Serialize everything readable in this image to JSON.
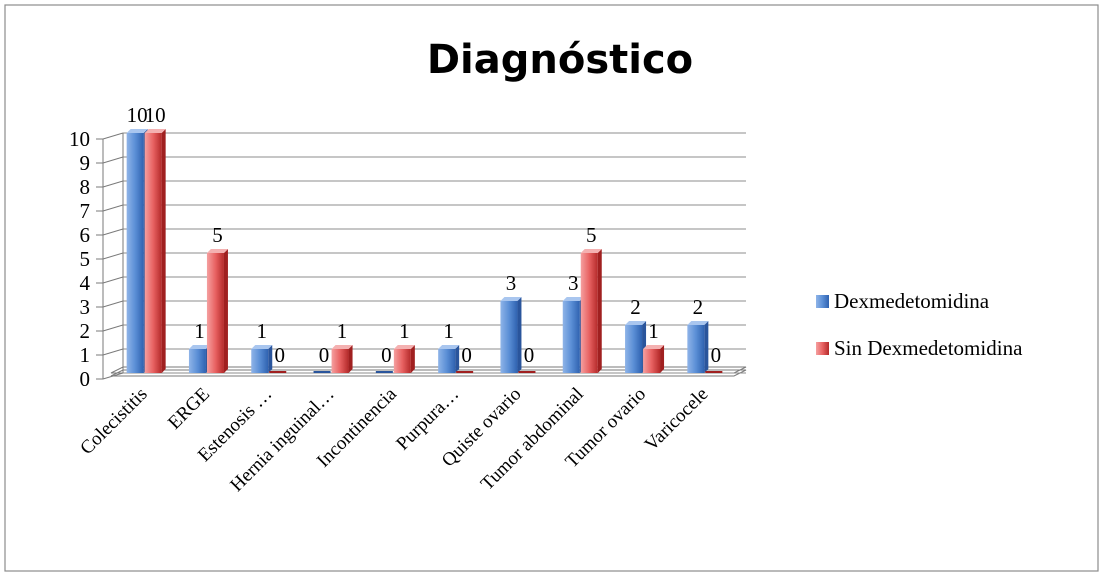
{
  "chart_data": {
    "type": "bar",
    "title": "Diagnóstico",
    "categories": [
      "Colecistitis",
      "ERGE",
      "Estenosis …",
      "Hernia inguinal…",
      "Incontinencia",
      "Purpura…",
      "Quiste ovario",
      "Tumor abdominal",
      "Tumor ovario",
      "Varicocele"
    ],
    "series": [
      {
        "name": "Dexmedetomidina",
        "values": [
          10,
          1,
          1,
          0,
          0,
          1,
          3,
          3,
          2,
          2
        ],
        "color": "#4f81bd"
      },
      {
        "name": "Sin Dexmedetomidina",
        "values": [
          10,
          5,
          0,
          1,
          1,
          0,
          0,
          5,
          1,
          0
        ],
        "color": "#e05050"
      }
    ],
    "ylim": [
      0,
      10
    ],
    "yticks": [
      "0",
      "1",
      "2",
      "3",
      "4",
      "5",
      "6",
      "7",
      "8",
      "9",
      "10"
    ],
    "grid": true,
    "legend": "right",
    "style": "3d-column"
  }
}
